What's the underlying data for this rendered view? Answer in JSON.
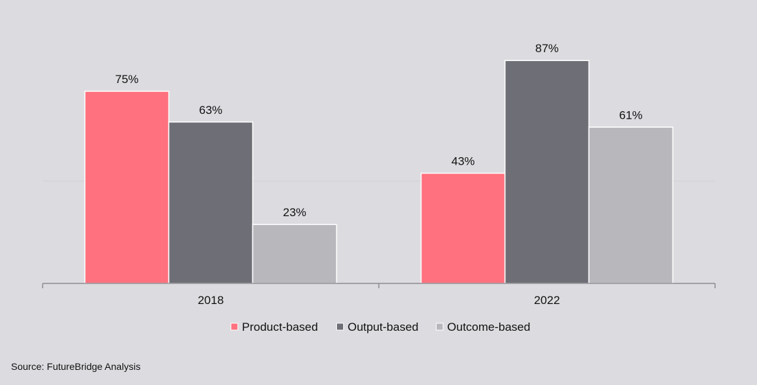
{
  "chart_data": {
    "type": "bar",
    "categories": [
      "2018",
      "2022"
    ],
    "series": [
      {
        "name": "Product-based",
        "values": [
          75,
          43
        ],
        "color": "#ff717e"
      },
      {
        "name": "Output-based",
        "values": [
          63,
          87
        ],
        "color": "#6e6e76"
      },
      {
        "name": "Outcome-based",
        "values": [
          23,
          61
        ],
        "color": "#b8b7bc"
      }
    ],
    "value_suffix": "%",
    "ylim": [
      0,
      100
    ],
    "legend": "bottom",
    "grid": false
  },
  "source": "Source: FutureBridge Analysis"
}
